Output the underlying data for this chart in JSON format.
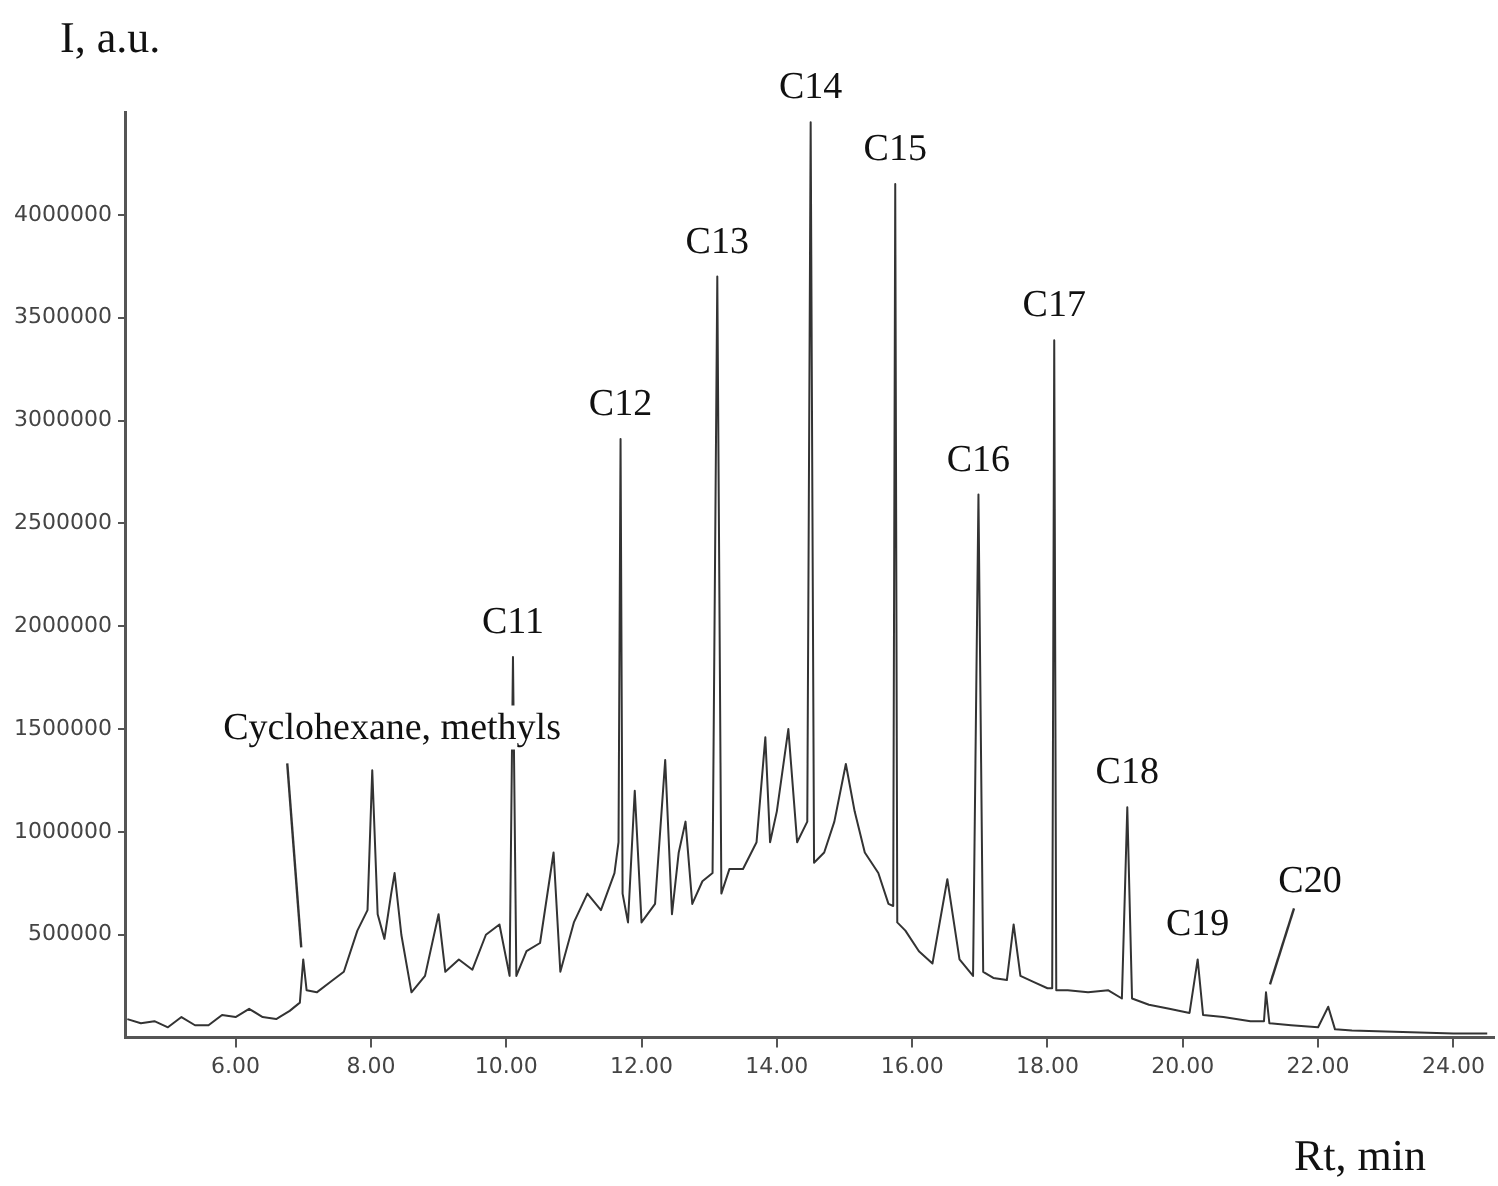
{
  "chart_data": {
    "type": "line",
    "xlabel": "Rt, min",
    "ylabel": "I, a.u.",
    "xlim": [
      4.38,
      24.6
    ],
    "xticks": [
      {
        "value": 6,
        "label": "6.00"
      },
      {
        "value": 8,
        "label": "8.00"
      },
      {
        "value": 10,
        "label": "10.00"
      },
      {
        "value": 12,
        "label": "12.00"
      },
      {
        "value": 14,
        "label": "14.00"
      },
      {
        "value": 16,
        "label": "16.00"
      },
      {
        "value": 18,
        "label": "18.00"
      },
      {
        "value": 20,
        "label": "20.00"
      },
      {
        "value": 22,
        "label": "22.00"
      },
      {
        "value": 24,
        "label": "24.00"
      }
    ],
    "ylim": [
      0,
      4500000
    ],
    "yticks": [
      500000,
      1000000,
      1500000,
      2000000,
      2500000,
      3000000,
      3500000,
      4000000
    ],
    "grid": false,
    "legend": false,
    "marker": "none",
    "line_style": "solid",
    "series": [
      {
        "color": "#333333",
        "x": [
          4.4,
          4.6,
          4.8,
          5.0,
          5.2,
          5.4,
          5.6,
          5.8,
          6.0,
          6.2,
          6.4,
          6.6,
          6.8,
          6.95,
          7.0,
          7.05,
          7.2,
          7.4,
          7.6,
          7.8,
          7.95,
          8.02,
          8.1,
          8.2,
          8.3,
          8.35,
          8.45,
          8.6,
          8.8,
          9.0,
          9.1,
          9.3,
          9.5,
          9.7,
          9.9,
          10.05,
          10.1,
          10.15,
          10.3,
          10.5,
          10.7,
          10.8,
          11.0,
          11.2,
          11.4,
          11.6,
          11.66,
          11.69,
          11.72,
          11.8,
          11.9,
          12.0,
          12.2,
          12.35,
          12.45,
          12.55,
          12.65,
          12.75,
          12.9,
          13.05,
          13.12,
          13.18,
          13.3,
          13.5,
          13.7,
          13.83,
          13.9,
          14.0,
          14.17,
          14.3,
          14.45,
          14.5,
          14.55,
          14.7,
          14.85,
          15.02,
          15.15,
          15.3,
          15.5,
          15.65,
          15.72,
          15.75,
          15.78,
          15.9,
          16.1,
          16.3,
          16.52,
          16.7,
          16.9,
          16.98,
          17.05,
          17.2,
          17.4,
          17.5,
          17.6,
          17.8,
          18.0,
          18.07,
          18.1,
          18.13,
          18.3,
          18.6,
          18.9,
          19.1,
          19.18,
          19.25,
          19.5,
          19.8,
          20.1,
          20.22,
          20.3,
          20.6,
          21.0,
          21.2,
          21.23,
          21.28,
          21.6,
          22.0,
          22.15,
          22.25,
          22.5,
          23.0,
          23.5,
          24.0,
          24.5
        ],
        "values": [
          90000,
          70000,
          80000,
          50000,
          100000,
          60000,
          60000,
          110000,
          100000,
          140000,
          100000,
          90000,
          130000,
          170000,
          380000,
          230000,
          220000,
          270000,
          320000,
          520000,
          620000,
          1300000,
          600000,
          480000,
          700000,
          800000,
          500000,
          220000,
          300000,
          600000,
          320000,
          380000,
          330000,
          500000,
          550000,
          300000,
          1850000,
          300000,
          420000,
          460000,
          900000,
          320000,
          560000,
          700000,
          620000,
          800000,
          950000,
          2910000,
          700000,
          560000,
          1200000,
          560000,
          650000,
          1350000,
          600000,
          900000,
          1050000,
          650000,
          760000,
          800000,
          3700000,
          700000,
          820000,
          820000,
          950000,
          1460000,
          950000,
          1100000,
          1500000,
          950000,
          1050000,
          4450000,
          850000,
          900000,
          1050000,
          1330000,
          1100000,
          900000,
          800000,
          650000,
          640000,
          4150000,
          560000,
          520000,
          420000,
          360000,
          770000,
          380000,
          300000,
          2640000,
          320000,
          290000,
          280000,
          550000,
          300000,
          270000,
          240000,
          240000,
          3390000,
          230000,
          230000,
          220000,
          230000,
          190000,
          1120000,
          190000,
          160000,
          140000,
          120000,
          380000,
          110000,
          100000,
          80000,
          80000,
          220000,
          70000,
          60000,
          50000,
          150000,
          40000,
          35000,
          30000,
          25000,
          20000,
          20000
        ]
      }
    ],
    "annotations": [
      {
        "text": "Cyclohexane, methyls",
        "x": 7.0,
        "y": 380000
      },
      {
        "text": "C11",
        "x": 10.1,
        "y": 1850000
      },
      {
        "text": "C12",
        "x": 11.69,
        "y": 2910000
      },
      {
        "text": "C13",
        "x": 13.12,
        "y": 3700000
      },
      {
        "text": "C14",
        "x": 14.5,
        "y": 4450000
      },
      {
        "text": "C15",
        "x": 15.75,
        "y": 4150000
      },
      {
        "text": "C16",
        "x": 16.98,
        "y": 2640000
      },
      {
        "text": "C17",
        "x": 18.1,
        "y": 3390000
      },
      {
        "text": "C18",
        "x": 19.18,
        "y": 1120000
      },
      {
        "text": "C19",
        "x": 20.22,
        "y": 380000
      },
      {
        "text": "C20",
        "x": 21.23,
        "y": 220000
      }
    ]
  }
}
